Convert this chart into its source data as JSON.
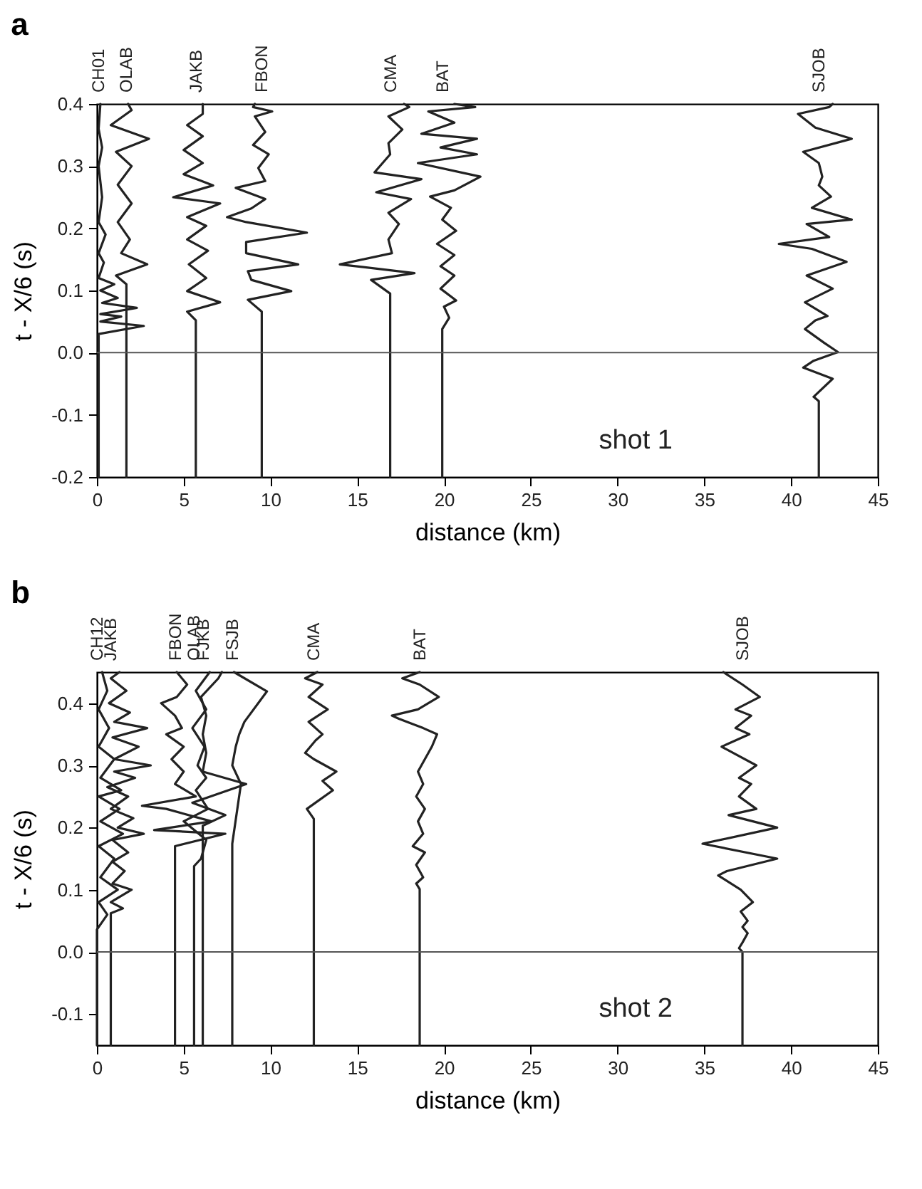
{
  "chart_data": [
    {
      "type": "line",
      "title": "a",
      "xlabel": "distance  (km)",
      "ylabel": "t - X/6  (s)",
      "xlim": [
        0,
        45
      ],
      "ylim": [
        -0.2,
        0.4
      ],
      "xticks": [
        0,
        5,
        10,
        15,
        20,
        25,
        30,
        35,
        40,
        45
      ],
      "yticks": [
        {
          "value": -0.2,
          "label": "-0.2"
        },
        {
          "value": -0.1,
          "label": "-0.1"
        },
        {
          "value": 0,
          "label": "0.0"
        },
        {
          "value": 0.1,
          "label": "0.1"
        },
        {
          "value": 0.2,
          "label": "0.2"
        },
        {
          "value": 0.3,
          "label": "0.3"
        },
        {
          "value": 0.4,
          "label": "0.4"
        }
      ],
      "grid": false,
      "legend": false,
      "ref_lines": [
        {
          "axis": "y",
          "value": 0
        }
      ],
      "annotations": [
        "shot 1"
      ],
      "series": [
        {
          "name": "CH01",
          "color": "#222222",
          "x": [
            0.1,
            0.1,
            2.7,
            0.2,
            1.4,
            0.2,
            2.3,
            0.3,
            1.2,
            0.2,
            1.0,
            0.1,
            0.4,
            0.1,
            0.5,
            0.1,
            0.3,
            0.1,
            0.3,
            0.1,
            0.2
          ],
          "values": [
            -0.2,
            0.03,
            0.043,
            0.05,
            0.058,
            0.062,
            0.072,
            0.08,
            0.088,
            0.1,
            0.11,
            0.12,
            0.145,
            0.16,
            0.19,
            0.21,
            0.25,
            0.3,
            0.33,
            0.36,
            0.4
          ]
        },
        {
          "name": "OLAB",
          "color": "#222222",
          "x": [
            1.7,
            1.7,
            1.1,
            2.9,
            1.4,
            1.9,
            1.2,
            2.0,
            1.2,
            2.0,
            1.1,
            3.0,
            0.8,
            2.0,
            1.8
          ],
          "values": [
            -0.2,
            0.11,
            0.124,
            0.142,
            0.16,
            0.182,
            0.21,
            0.24,
            0.27,
            0.3,
            0.323,
            0.344,
            0.366,
            0.39,
            0.4
          ]
        },
        {
          "name": "JAKB",
          "color": "#222222",
          "x": [
            5.7,
            5.7,
            5.2,
            7.1,
            5.2,
            6.3,
            5.3,
            6.4,
            5.2,
            6.3,
            5.2,
            7.1,
            4.4,
            6.7,
            5.0,
            6.1,
            5.0,
            6.1,
            5.2,
            6.1,
            6.1
          ],
          "values": [
            -0.2,
            0.052,
            0.066,
            0.081,
            0.099,
            0.12,
            0.142,
            0.164,
            0.182,
            0.204,
            0.218,
            0.24,
            0.25,
            0.269,
            0.287,
            0.305,
            0.326,
            0.348,
            0.366,
            0.384,
            0.4
          ]
        },
        {
          "name": "FBON",
          "color": "#222222",
          "x": [
            9.5,
            9.5,
            8.7,
            11.2,
            8.9,
            8.7,
            11.6,
            8.6,
            8.6,
            12.1,
            8.6,
            7.5,
            8.9,
            9.7,
            8.0,
            9.7,
            9.3,
            9.9,
            9.0,
            9.7,
            9.1,
            10.1,
            9.0,
            9.1
          ],
          "values": [
            -0.2,
            0.066,
            0.085,
            0.099,
            0.117,
            0.131,
            0.142,
            0.16,
            0.178,
            0.193,
            0.21,
            0.218,
            0.232,
            0.247,
            0.265,
            0.276,
            0.297,
            0.319,
            0.334,
            0.355,
            0.38,
            0.388,
            0.395,
            0.4
          ]
        },
        {
          "name": "CMA",
          "color": "#222222",
          "x": [
            16.9,
            16.9,
            15.8,
            18.3,
            14.0,
            17.0,
            16.8,
            17.4,
            16.8,
            18.1,
            16.1,
            18.7,
            16.0,
            16.9,
            16.8,
            17.6,
            16.8,
            18.0,
            17.7
          ],
          "values": [
            -0.2,
            0.095,
            0.117,
            0.128,
            0.142,
            0.16,
            0.182,
            0.207,
            0.225,
            0.247,
            0.258,
            0.279,
            0.29,
            0.319,
            0.337,
            0.359,
            0.38,
            0.395,
            0.4
          ]
        },
        {
          "name": "BAT",
          "color": "#222222",
          "x": [
            19.9,
            19.9,
            20.3,
            20.0,
            20.7,
            19.8,
            20.6,
            19.8,
            20.6,
            19.6,
            20.7,
            19.9,
            20.4,
            19.2,
            20.6,
            22.1,
            18.5,
            21.9,
            19.8,
            21.9,
            18.7,
            20.6,
            19.1,
            21.8,
            20.6
          ],
          "values": [
            -0.2,
            0.038,
            0.056,
            0.074,
            0.084,
            0.103,
            0.124,
            0.139,
            0.157,
            0.175,
            0.196,
            0.214,
            0.233,
            0.251,
            0.261,
            0.283,
            0.305,
            0.319,
            0.33,
            0.344,
            0.352,
            0.37,
            0.388,
            0.395,
            0.4
          ]
        },
        {
          "name": "SJOB",
          "color": "#222222",
          "x": [
            41.6,
            41.6,
            41.3,
            42.4,
            40.7,
            41.3,
            42.7,
            41.9,
            40.8,
            41.4,
            42.1,
            40.8,
            42.4,
            40.9,
            43.2,
            41.2,
            39.3,
            42.2,
            40.9,
            43.5,
            41.2,
            42.3,
            41.6,
            41.8,
            41.6,
            40.7,
            43.5,
            41.4,
            40.4,
            42.2,
            42.4
          ],
          "values": [
            -0.2,
            -0.078,
            -0.071,
            -0.042,
            -0.024,
            -0.013,
            0.001,
            0.016,
            0.038,
            0.052,
            0.059,
            0.081,
            0.103,
            0.124,
            0.146,
            0.167,
            0.175,
            0.186,
            0.207,
            0.214,
            0.233,
            0.251,
            0.269,
            0.283,
            0.305,
            0.323,
            0.344,
            0.362,
            0.384,
            0.395,
            0.4
          ]
        }
      ]
    },
    {
      "type": "line",
      "title": "b",
      "xlabel": "distance  (km)",
      "ylabel": "t - X/6  (s)",
      "xlim": [
        0,
        45
      ],
      "ylim": [
        -0.15,
        0.45
      ],
      "xticks": [
        0,
        5,
        10,
        15,
        20,
        25,
        30,
        35,
        40,
        45
      ],
      "yticks": [
        {
          "value": -0.1,
          "label": "-0.1"
        },
        {
          "value": 0,
          "label": "0.0"
        },
        {
          "value": 0.1,
          "label": "0.1"
        },
        {
          "value": 0.2,
          "label": "0.2"
        },
        {
          "value": 0.3,
          "label": "0.3"
        },
        {
          "value": 0.4,
          "label": "0.4"
        }
      ],
      "grid": false,
      "legend": false,
      "ref_lines": [
        {
          "axis": "y",
          "value": 0
        }
      ],
      "annotations": [
        "shot 2"
      ],
      "series": [
        {
          "name": "CH12",
          "color": "#222222",
          "x": [
            0,
            0,
            0.6,
            0.1,
            1.2,
            0.2,
            1.0,
            0.1,
            1.5,
            0.2,
            1.3,
            0.1,
            1.4,
            0.2,
            1.0,
            0.1,
            0.7,
            0.1,
            0.6,
            0.3
          ],
          "values": [
            -0.15,
            0.036,
            0.06,
            0.08,
            0.1,
            0.12,
            0.15,
            0.17,
            0.19,
            0.21,
            0.23,
            0.25,
            0.26,
            0.28,
            0.31,
            0.33,
            0.36,
            0.39,
            0.42,
            0.45
          ]
        },
        {
          "name": "JAKB",
          "color": "#222222",
          "x": [
            0.8,
            0.8,
            1.5,
            0.8,
            2.0,
            0.9,
            1.6,
            0.9,
            1.8,
            0.9,
            2.7,
            1.2,
            2.1,
            0.8,
            1.8,
            0.6,
            2.2,
            1.0,
            3.1,
            1.0,
            2.4,
            0.9,
            2.9,
            1.0,
            1.9,
            0.7,
            1.7,
            0.8,
            1.3
          ],
          "values": [
            -0.15,
            0.062,
            0.07,
            0.08,
            0.1,
            0.11,
            0.13,
            0.145,
            0.16,
            0.18,
            0.19,
            0.2,
            0.215,
            0.23,
            0.25,
            0.265,
            0.28,
            0.29,
            0.3,
            0.31,
            0.33,
            0.345,
            0.36,
            0.37,
            0.385,
            0.4,
            0.42,
            0.44,
            0.45
          ]
        },
        {
          "name": "FBON",
          "color": "#222222",
          "x": [
            4.5,
            4.5,
            7.4,
            3.3,
            6.6,
            4.0,
            2.6,
            5.7,
            4.5,
            5.0,
            4.3,
            5.0,
            4.0,
            4.9,
            4.5,
            3.7,
            4.6,
            5.2,
            4.6
          ],
          "values": [
            -0.15,
            0.17,
            0.19,
            0.196,
            0.21,
            0.23,
            0.235,
            0.25,
            0.27,
            0.29,
            0.31,
            0.33,
            0.35,
            0.36,
            0.38,
            0.4,
            0.41,
            0.43,
            0.45
          ]
        },
        {
          "name": "OLAB",
          "color": "#222222",
          "x": [
            5.6,
            5.6,
            6.0,
            6.3,
            5.0,
            6.4,
            5.7,
            6.3,
            5.8,
            6.2,
            5.5,
            6.3,
            5.7,
            6.5
          ],
          "values": [
            -0.15,
            0.138,
            0.15,
            0.18,
            0.21,
            0.23,
            0.26,
            0.28,
            0.3,
            0.33,
            0.36,
            0.39,
            0.42,
            0.45
          ]
        },
        {
          "name": "FJKB",
          "color": "#222222",
          "x": [
            6.1,
            6.1,
            7.4,
            5.5,
            8.6,
            6.1,
            6.3,
            6.1,
            6.3,
            6.0,
            7.0,
            7.2
          ],
          "values": [
            -0.15,
            0.203,
            0.22,
            0.24,
            0.27,
            0.29,
            0.32,
            0.35,
            0.38,
            0.41,
            0.44,
            0.45
          ]
        },
        {
          "name": "FSJB",
          "color": "#222222",
          "x": [
            7.8,
            7.8,
            8.3,
            7.8,
            8.0,
            8.2,
            8.5,
            9.8,
            7.9
          ],
          "values": [
            -0.15,
            0.174,
            0.27,
            0.3,
            0.33,
            0.35,
            0.37,
            0.419,
            0.45
          ]
        },
        {
          "name": "CMA",
          "color": "#222222",
          "x": [
            12.5,
            12.5,
            12.1,
            12.6,
            13.6,
            13.0,
            13.8,
            12.5,
            12.0,
            12.6,
            13.0,
            12.2,
            13.3,
            12.2,
            13.0,
            12.0,
            12.7
          ],
          "values": [
            -0.15,
            0.214,
            0.23,
            0.24,
            0.26,
            0.275,
            0.29,
            0.31,
            0.32,
            0.34,
            0.35,
            0.37,
            0.39,
            0.41,
            0.43,
            0.44,
            0.45
          ]
        },
        {
          "name": "BAT",
          "color": "#222222",
          "x": [
            18.6,
            18.6,
            18.4,
            18.8,
            18.4,
            18.9,
            18.2,
            18.8,
            18.5,
            18.9,
            18.4,
            18.8,
            18.5,
            18.9,
            19.3,
            19.6,
            18.8,
            17.4,
            17.0,
            18.5,
            19.7,
            18.6,
            17.6,
            18.6
          ],
          "values": [
            -0.15,
            0.101,
            0.11,
            0.12,
            0.14,
            0.16,
            0.17,
            0.19,
            0.21,
            0.23,
            0.25,
            0.27,
            0.29,
            0.31,
            0.33,
            0.35,
            0.36,
            0.375,
            0.38,
            0.39,
            0.41,
            0.43,
            0.44,
            0.45
          ]
        },
        {
          "name": "SJOB",
          "color": "#222222",
          "x": [
            37.2,
            37.2,
            37.0,
            37.2,
            37.5,
            37.2,
            37.5,
            37.1,
            37.8,
            37.1,
            35.8,
            36.3,
            39.2,
            34.9,
            39.2,
            36.4,
            38.0,
            37.0,
            37.7,
            37.0,
            38.0,
            36.0,
            37.6,
            36.8,
            37.7,
            36.8,
            38.2,
            37.2,
            36.1
          ],
          "values": [
            -0.15,
            0.0,
            0.006,
            0.015,
            0.03,
            0.04,
            0.05,
            0.065,
            0.08,
            0.1,
            0.123,
            0.13,
            0.15,
            0.174,
            0.2,
            0.22,
            0.23,
            0.25,
            0.27,
            0.28,
            0.3,
            0.33,
            0.35,
            0.36,
            0.38,
            0.39,
            0.41,
            0.43,
            0.45
          ]
        }
      ]
    }
  ]
}
